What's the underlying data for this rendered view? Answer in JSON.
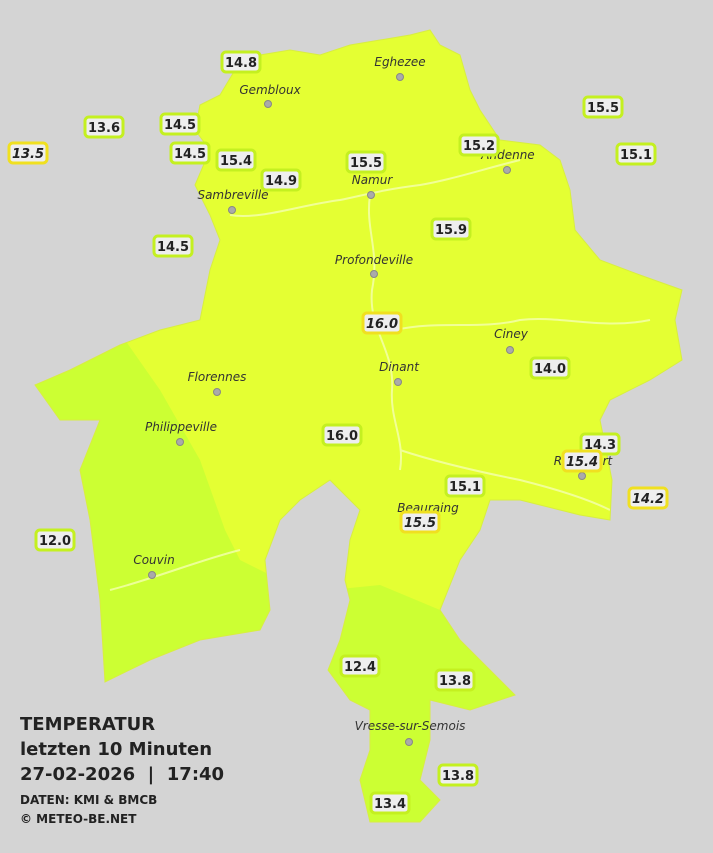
{
  "legend": {
    "title": "TEMPERATUR",
    "period": "letzten 10 Minuten",
    "datetime": "27-02-2026  |  17:40",
    "source": "DATEN: KMI & BMCB",
    "copyright": "© METEO-BE.NET"
  },
  "cities": [
    "Eghezee",
    "Gembloux",
    "Andenne",
    "Namur",
    "Sambreville",
    "Profondeville",
    "Ciney",
    "Dinant",
    "Florennes",
    "Philippeville",
    "Rochefort",
    "Beauraing",
    "Couvin",
    "Vresse-sur-Semois"
  ],
  "stations": [
    "14.8",
    "13.6",
    "14.5",
    "13.5",
    "14.5",
    "15.4",
    "14.9",
    "15.5",
    "15.2",
    "15.5",
    "15.1",
    "14.5",
    "15.9",
    "16.0",
    "14.0",
    "16.0",
    "14.3",
    "15.4",
    "14.2",
    "15.1",
    "15.5",
    "12.0",
    "12.4",
    "13.8",
    "13.8",
    "13.4"
  ]
}
